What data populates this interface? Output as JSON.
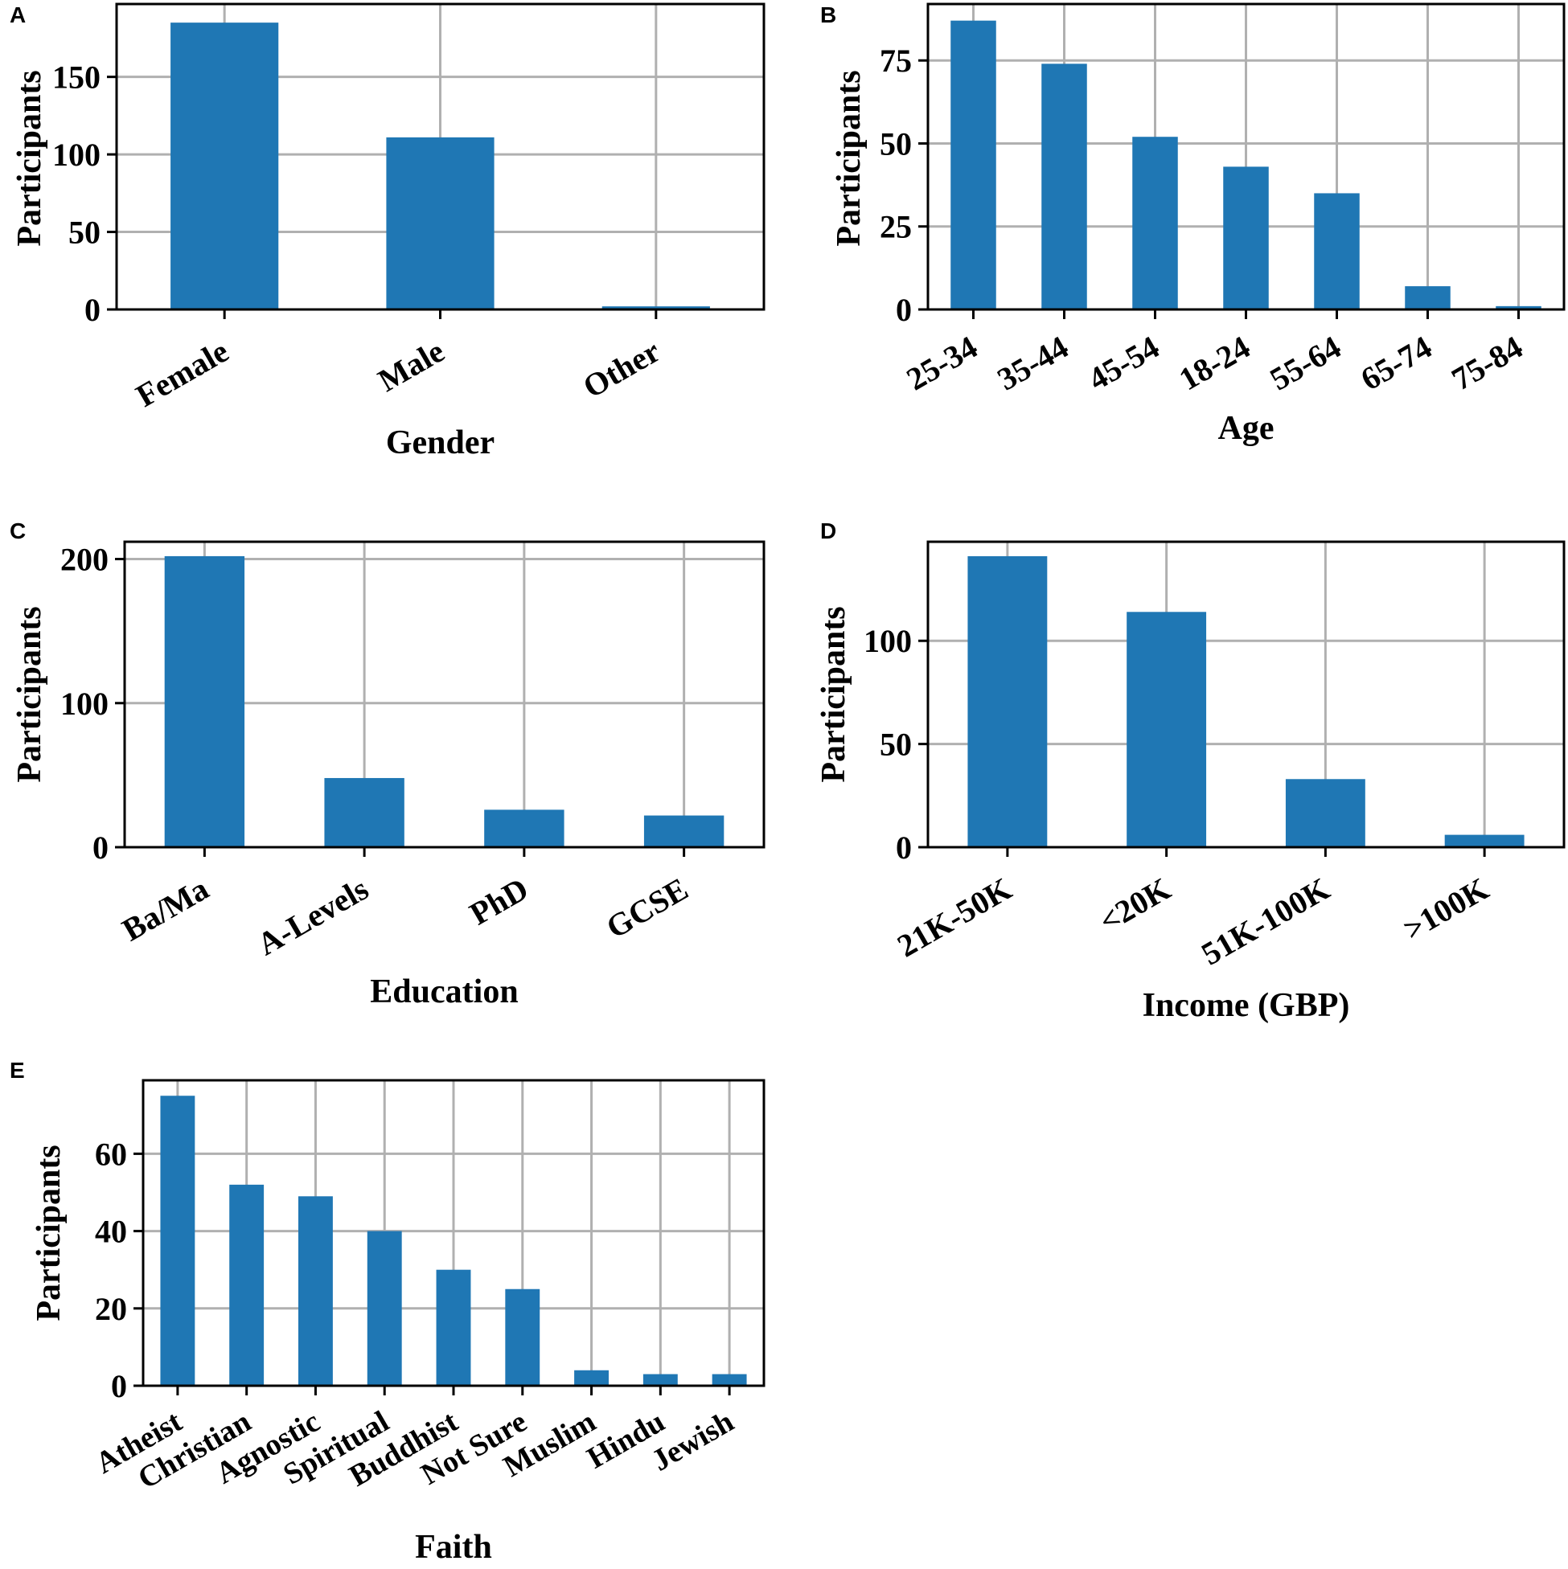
{
  "colors": {
    "bar": "#1f77b4",
    "grid": "#b0b0b0",
    "axis": "#000000"
  },
  "chart_data": [
    {
      "panel": "A",
      "type": "bar",
      "xlabel": "Gender",
      "ylabel": "Participants",
      "categories": [
        "Female",
        "Male",
        "Other"
      ],
      "values": [
        185,
        111,
        2
      ],
      "ylim": [
        0,
        197
      ],
      "yticks": [
        0,
        50,
        100,
        150
      ],
      "grid": true
    },
    {
      "panel": "B",
      "type": "bar",
      "xlabel": "Age",
      "ylabel": "Participants",
      "categories": [
        "25-34",
        "35-44",
        "45-54",
        "18-24",
        "55-64",
        "65-74",
        "75-84"
      ],
      "values": [
        87,
        74,
        52,
        43,
        35,
        7,
        1
      ],
      "ylim": [
        0,
        92
      ],
      "yticks": [
        0,
        25,
        50,
        75
      ],
      "grid": true
    },
    {
      "panel": "C",
      "type": "bar",
      "xlabel": "Education",
      "ylabel": "Participants",
      "categories": [
        "Ba/Ma",
        "A-Levels",
        "PhD",
        "GCSE"
      ],
      "values": [
        202,
        48,
        26,
        22
      ],
      "ylim": [
        0,
        212
      ],
      "yticks": [
        0,
        100,
        200
      ],
      "grid": true
    },
    {
      "panel": "D",
      "type": "bar",
      "xlabel": "Income (GBP)",
      "ylabel": "Participants",
      "categories": [
        "21K-50K",
        "<20K",
        "51K-100K",
        ">100K"
      ],
      "values": [
        141,
        114,
        33,
        6
      ],
      "ylim": [
        0,
        148
      ],
      "yticks": [
        0,
        50,
        100
      ],
      "grid": true
    },
    {
      "panel": "E",
      "type": "bar",
      "xlabel": "Faith",
      "ylabel": "Participants",
      "categories": [
        "Atheist",
        "Christian",
        "Agnostic",
        "Spiritual",
        "Buddhist",
        "Not Sure",
        "Muslim",
        "Hindu",
        "Jewish"
      ],
      "values": [
        75,
        52,
        49,
        40,
        30,
        25,
        4,
        3,
        3
      ],
      "ylim": [
        0,
        79
      ],
      "yticks": [
        0,
        20,
        40,
        60
      ],
      "grid": true
    }
  ]
}
